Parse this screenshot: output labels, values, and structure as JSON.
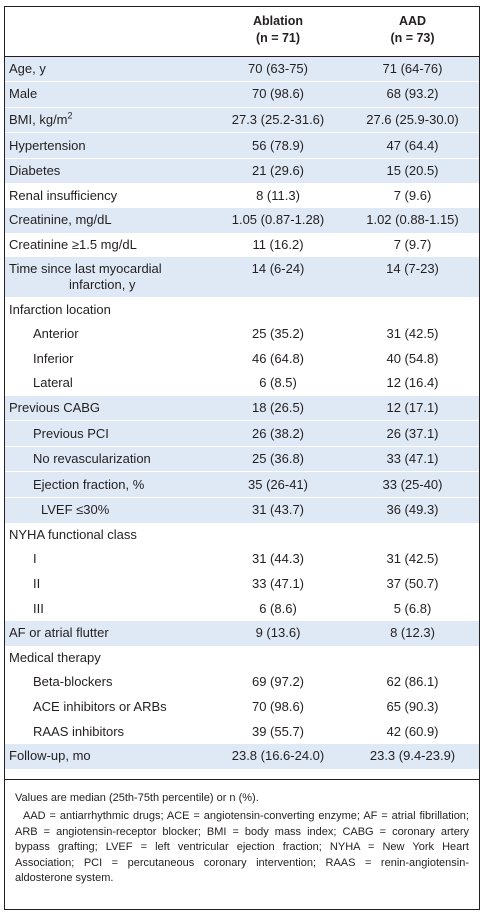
{
  "header": {
    "col1": "",
    "ablation_label": "Ablation",
    "ablation_n": "(n = 71)",
    "aad_label": "AAD",
    "aad_n": "(n = 73)"
  },
  "rows": [
    {
      "label": "Age, y",
      "ablation": "70 (63-75)",
      "aad": "71 (64-76)"
    },
    {
      "label": "Male",
      "ablation": "70 (98.6)",
      "aad": "68 (93.2)"
    },
    {
      "label": "BMI, kg/m",
      "label_sup": "2",
      "ablation": "27.3 (25.2-31.6)",
      "aad": "27.6 (25.9-30.0)"
    },
    {
      "label": "Hypertension",
      "ablation": "56 (78.9)",
      "aad": "47 (64.4)"
    },
    {
      "label": "Diabetes",
      "ablation": "21 (29.6)",
      "aad": "15 (20.5)"
    },
    {
      "label": "Renal insufficiency",
      "ablation": "8 (11.3)",
      "aad": "7 (9.6)"
    },
    {
      "label": "Creatinine, mg/dL",
      "ablation": "1.05 (0.87-1.28)",
      "aad": "1.02 (0.88-1.15)"
    },
    {
      "label": "Creatinine ≥1.5 mg/dL",
      "ablation": "11 (16.2)",
      "aad": "7 (9.7)"
    },
    {
      "label": "Time since last myocardial",
      "label_line2": "infarction, y",
      "ablation": "14 (6-24)",
      "aad": "14 (7-23)"
    },
    {
      "label": "Infarction location",
      "ablation": "",
      "aad": ""
    },
    {
      "label": "Anterior",
      "ablation": "25 (35.2)",
      "aad": "31 (42.5)"
    },
    {
      "label": "Inferior",
      "ablation": "46 (64.8)",
      "aad": "40 (54.8)"
    },
    {
      "label": "Lateral",
      "ablation": "6 (8.5)",
      "aad": "12 (16.4)"
    },
    {
      "label": "Previous CABG",
      "ablation": "18 (26.5)",
      "aad": "12 (17.1)"
    },
    {
      "label": "Previous PCI",
      "ablation": "26 (38.2)",
      "aad": "26 (37.1)"
    },
    {
      "label": "No revascularization",
      "ablation": "25 (36.8)",
      "aad": "33 (47.1)"
    },
    {
      "label": "Ejection fraction, %",
      "ablation": "35 (26-41)",
      "aad": "33 (25-40)"
    },
    {
      "label": "LVEF ≤30%",
      "ablation": "31 (43.7)",
      "aad": "36 (49.3)"
    },
    {
      "label": "NYHA functional class",
      "ablation": "",
      "aad": ""
    },
    {
      "label": "I",
      "ablation": "31 (44.3)",
      "aad": "31 (42.5)"
    },
    {
      "label": "II",
      "ablation": "33 (47.1)",
      "aad": "37 (50.7)"
    },
    {
      "label": "III",
      "ablation": "6 (8.6)",
      "aad": "5 (6.8)"
    },
    {
      "label": "AF or atrial flutter",
      "ablation": "9 (13.6)",
      "aad": "8 (12.3)"
    },
    {
      "label": "Medical therapy",
      "ablation": "",
      "aad": ""
    },
    {
      "label": "Beta-blockers",
      "ablation": "69 (97.2)",
      "aad": "62 (86.1)"
    },
    {
      "label": "ACE inhibitors or ARBs",
      "ablation": "70 (98.6)",
      "aad": "65 (90.3)"
    },
    {
      "label": "RAAS inhibitors",
      "ablation": "39 (55.7)",
      "aad": "42 (60.9)"
    },
    {
      "label": "Follow-up, mo",
      "ablation": "23.8 (16.6-24.0)",
      "aad": "23.3 (9.4-23.9)"
    }
  ],
  "footer": {
    "note": "Values are median (25th-75th percentile) or n (%).",
    "abbreviations": "AAD = antiarrhythmic drugs; ACE = angiotensin-converting enzyme; AF = atrial fibrillation; ARB = angiotensin-receptor blocker; BMI = body mass index; CABG = coronary artery bypass grafting; LVEF = left ventricular ejection fraction; NYHA = New York Heart Association; PCI = percutaneous coronary intervention; RAAS = renin-angiotensin-aldosterone system."
  },
  "colors": {
    "shade": "#dfe9f6",
    "text": "#231f20"
  }
}
